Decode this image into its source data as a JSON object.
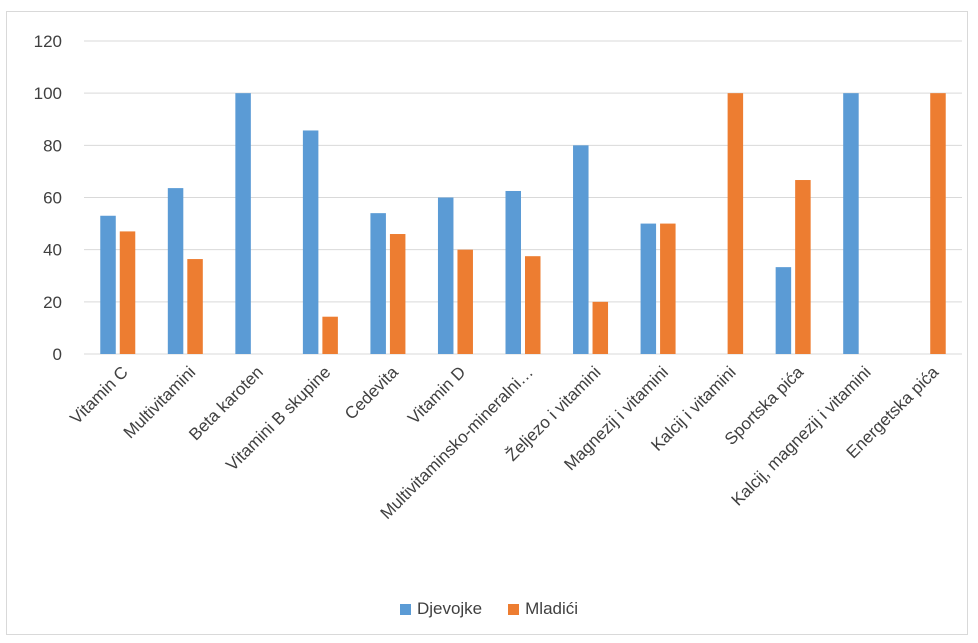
{
  "chart_data": {
    "type": "bar",
    "title": "",
    "xlabel": "",
    "ylabel": "",
    "ylim": [
      0,
      120
    ],
    "yticks": [
      0,
      20,
      40,
      60,
      80,
      100,
      120
    ],
    "grid": true,
    "legend_position": "bottom",
    "categories": [
      "Vitamin C",
      "Multivitamini",
      "Beta karoten",
      "Vitamini B skupine",
      "Cedevita",
      "Vitamin D",
      "Multivitaminsko-mineralni…",
      "Željezo i vitamini",
      "Magnezij i vitamini",
      "Kalcij i vitamini",
      "Sportska pića",
      "Kalcij, magnezij i vitamini",
      "Energetska pića"
    ],
    "series": [
      {
        "name": "Djevojke",
        "color": "#5b9bd5",
        "values": [
          53,
          63.6,
          100,
          85.7,
          54,
          60,
          62.5,
          80,
          50,
          0,
          33.3,
          100,
          0
        ]
      },
      {
        "name": "Mladići",
        "color": "#ed7d31",
        "values": [
          47,
          36.4,
          0,
          14.3,
          46,
          40,
          37.5,
          20,
          50,
          100,
          66.7,
          0,
          100
        ]
      }
    ]
  }
}
